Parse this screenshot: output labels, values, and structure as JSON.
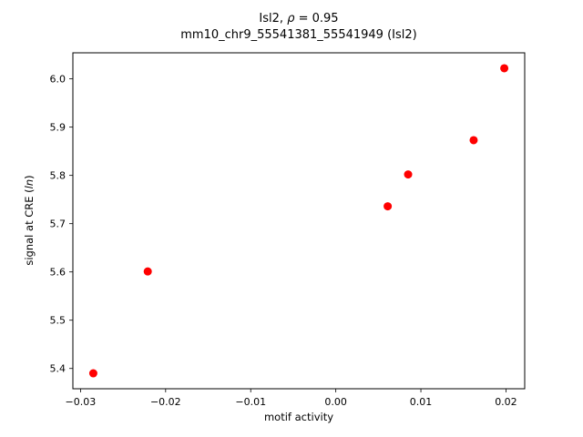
{
  "title": {
    "line1_pre": "Isl2, ",
    "rho": "ρ",
    "line1_post": " = 0.95",
    "line2": "mm10_chr9_55541381_55541949 (Isl2)"
  },
  "axes": {
    "xlabel": "motif activity",
    "ylabel_pre": "signal at CRE (",
    "ylabel_italic": "ln",
    "ylabel_post": ")"
  },
  "chart_data": {
    "type": "scatter",
    "title": "Isl2, ρ = 0.95\nmm10_chr9_55541381_55541949 (Isl2)",
    "xlabel": "motif activity",
    "ylabel": "signal at CRE (ln)",
    "marker_color": "#ff0000",
    "marker_style": "circle",
    "grid": false,
    "xlim": [
      -0.0309,
      0.0222
    ],
    "ylim": [
      5.358,
      6.054
    ],
    "points": [
      [
        -0.0285,
        5.39
      ],
      [
        -0.0221,
        5.601
      ],
      [
        0.0061,
        5.736
      ],
      [
        0.0085,
        5.802
      ],
      [
        0.0162,
        5.873
      ],
      [
        0.0198,
        6.022
      ]
    ],
    "x_ticks": [
      {
        "value": -0.03,
        "label": "−0.03"
      },
      {
        "value": -0.02,
        "label": "−0.02"
      },
      {
        "value": -0.01,
        "label": "−0.01"
      },
      {
        "value": 0.0,
        "label": "0.00"
      },
      {
        "value": 0.01,
        "label": "0.01"
      },
      {
        "value": 0.02,
        "label": "0.02"
      }
    ],
    "y_ticks": [
      {
        "value": 5.4,
        "label": "5.4"
      },
      {
        "value": 5.5,
        "label": "5.5"
      },
      {
        "value": 5.6,
        "label": "5.6"
      },
      {
        "value": 5.7,
        "label": "5.7"
      },
      {
        "value": 5.8,
        "label": "5.8"
      },
      {
        "value": 5.9,
        "label": "5.9"
      },
      {
        "value": 6.0,
        "label": "6.0"
      }
    ]
  }
}
